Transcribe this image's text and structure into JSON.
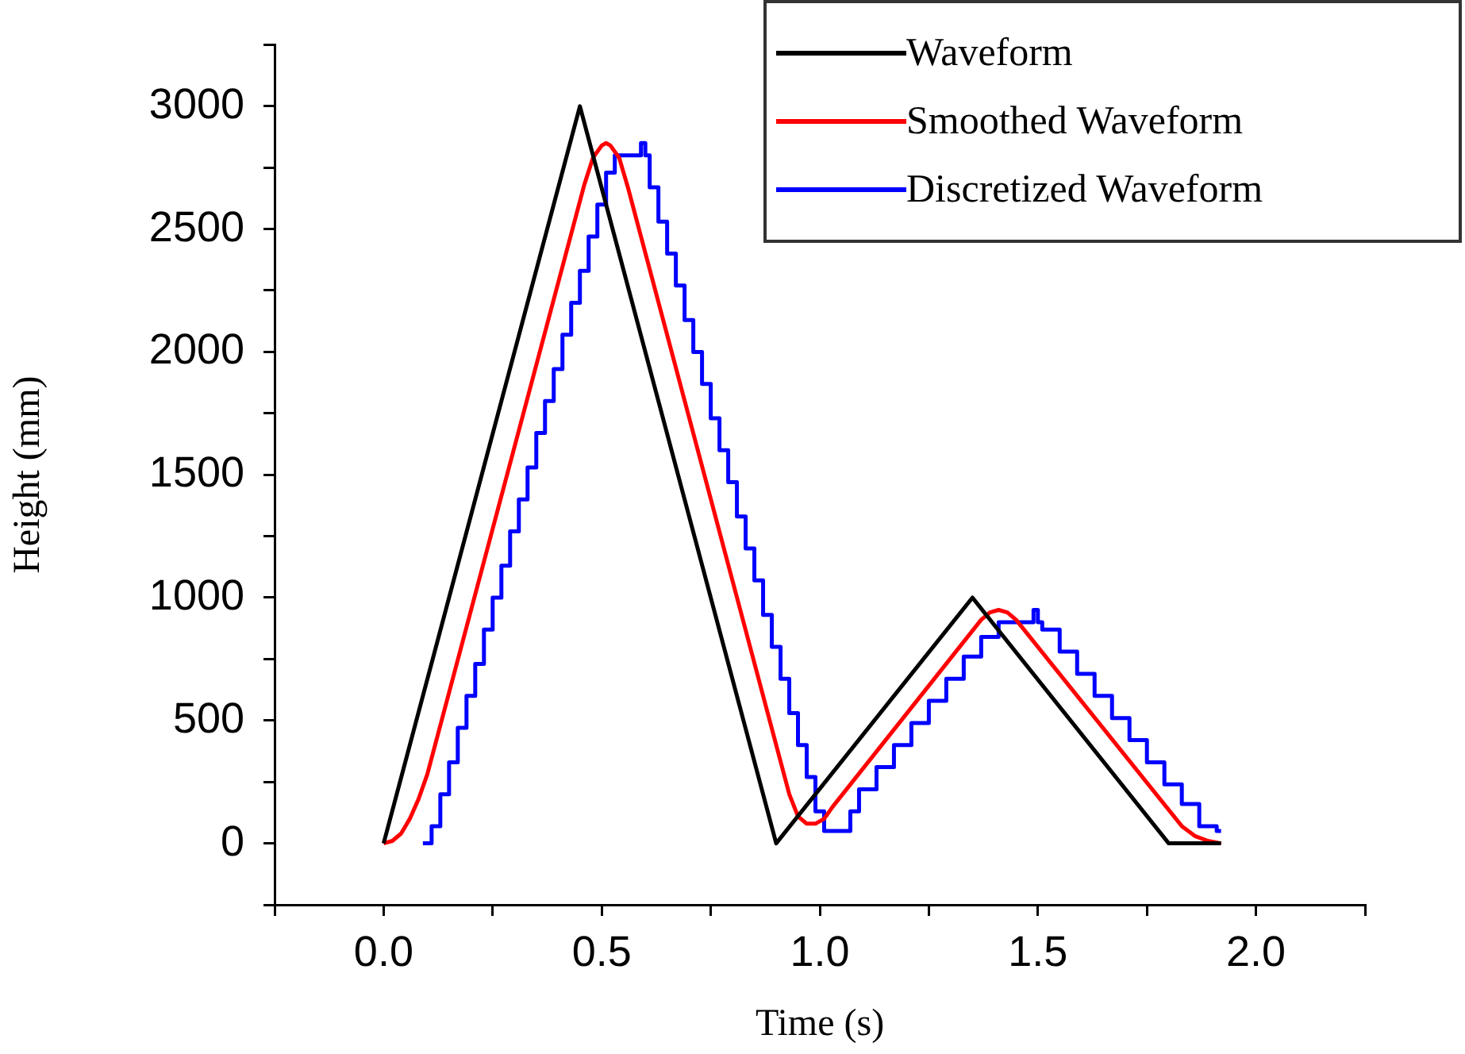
{
  "chart_data": {
    "type": "line",
    "xlabel": "Time (s)",
    "ylabel": "Height (mm)",
    "xlim": [
      -0.25,
      2.25
    ],
    "xticks": [
      {
        "value": -0.25,
        "label": null
      },
      {
        "value": 0,
        "label": "0.0"
      },
      {
        "value": 0.25,
        "label": null
      },
      {
        "value": 0.5,
        "label": "0.5"
      },
      {
        "value": 0.75,
        "label": null
      },
      {
        "value": 1,
        "label": "1.0"
      },
      {
        "value": 1.25,
        "label": null
      },
      {
        "value": 1.5,
        "label": "1.5"
      },
      {
        "value": 1.75,
        "label": null
      },
      {
        "value": 2,
        "label": "2.0"
      },
      {
        "value": 2.25,
        "label": null
      }
    ],
    "ylim": [
      -250,
      3250
    ],
    "yticks": [
      {
        "value": -250,
        "label": null
      },
      0,
      {
        "value": 250,
        "label": null
      },
      500,
      {
        "value": 750,
        "label": null
      },
      1000,
      {
        "value": 1250,
        "label": null
      },
      1500,
      {
        "value": 1750,
        "label": null
      },
      2000,
      {
        "value": 2250,
        "label": null
      },
      2500,
      {
        "value": 2750,
        "label": null
      },
      3000,
      {
        "value": 3250,
        "label": null
      }
    ],
    "grid": false,
    "legend": "top right",
    "marker": "none",
    "line_style": "solid",
    "series": [
      {
        "name": "Waveform",
        "color": "#000000",
        "type": "line",
        "x": [
          0,
          0.45,
          0.9,
          1.35,
          1.8,
          1.92
        ],
        "values": [
          0,
          3000,
          0,
          1000,
          0,
          0
        ]
      },
      {
        "name": "Smoothed Waveform",
        "color": "#ff0000",
        "type": "line",
        "x": [
          0,
          0.02,
          0.04,
          0.06,
          0.08,
          0.1,
          0.46,
          0.48,
          0.5,
          0.51,
          0.52,
          0.54,
          0.56,
          0.93,
          0.95,
          0.97,
          0.99,
          1.01,
          1.03,
          1.37,
          1.39,
          1.41,
          1.43,
          1.45,
          1.83,
          1.86,
          1.89,
          1.92
        ],
        "values": [
          0,
          10,
          40,
          100,
          180,
          280,
          2680,
          2790,
          2840,
          2850,
          2840,
          2790,
          2670,
          200,
          110,
          80,
          80,
          100,
          150,
          910,
          940,
          950,
          940,
          910,
          70,
          30,
          10,
          0
        ]
      },
      {
        "name": "Discretized Waveform",
        "color": "#0000ff",
        "type": "step",
        "x": [
          0.09,
          0.11,
          0.13,
          0.15,
          0.17,
          0.19,
          0.21,
          0.23,
          0.25,
          0.27,
          0.29,
          0.31,
          0.33,
          0.35,
          0.37,
          0.39,
          0.41,
          0.43,
          0.45,
          0.47,
          0.49,
          0.51,
          0.53,
          0.55,
          0.57,
          0.59,
          0.6,
          0.61,
          0.63,
          0.65,
          0.67,
          0.69,
          0.71,
          0.73,
          0.75,
          0.77,
          0.79,
          0.81,
          0.83,
          0.85,
          0.87,
          0.89,
          0.91,
          0.93,
          0.95,
          0.97,
          0.99,
          1.01,
          1.03,
          1.05,
          1.07,
          1.09,
          1.13,
          1.17,
          1.21,
          1.25,
          1.29,
          1.33,
          1.37,
          1.41,
          1.45,
          1.49,
          1.5,
          1.51,
          1.55,
          1.59,
          1.63,
          1.67,
          1.71,
          1.75,
          1.79,
          1.83,
          1.87,
          1.91,
          1.92
        ],
        "values": [
          0,
          0,
          70,
          200,
          330,
          470,
          600,
          730,
          870,
          1000,
          1130,
          1270,
          1400,
          1530,
          1670,
          1800,
          1930,
          2070,
          2200,
          2330,
          2470,
          2600,
          2730,
          2800,
          2800,
          2800,
          2850,
          2800,
          2670,
          2530,
          2400,
          2270,
          2130,
          2000,
          1870,
          1730,
          1600,
          1470,
          1330,
          1200,
          1070,
          930,
          800,
          670,
          530,
          400,
          270,
          130,
          50,
          50,
          50,
          130,
          220,
          310,
          400,
          490,
          580,
          670,
          760,
          840,
          900,
          900,
          950,
          900,
          870,
          780,
          690,
          600,
          510,
          420,
          330,
          240,
          160,
          70,
          50
        ]
      }
    ]
  }
}
